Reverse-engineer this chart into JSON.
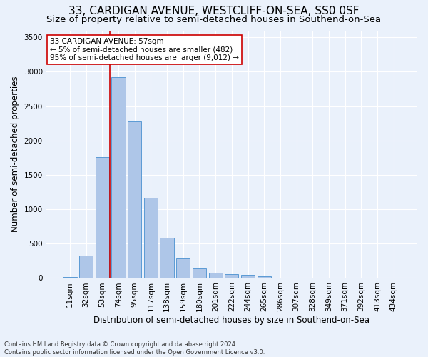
{
  "title_line1": "33, CARDIGAN AVENUE, WESTCLIFF-ON-SEA, SS0 0SF",
  "title_line2": "Size of property relative to semi-detached houses in Southend-on-Sea",
  "xlabel": "Distribution of semi-detached houses by size in Southend-on-Sea",
  "ylabel": "Number of semi-detached properties",
  "footnote": "Contains HM Land Registry data © Crown copyright and database right 2024.\nContains public sector information licensed under the Open Government Licence v3.0.",
  "categories": [
    "11sqm",
    "32sqm",
    "53sqm",
    "74sqm",
    "95sqm",
    "117sqm",
    "138sqm",
    "159sqm",
    "180sqm",
    "201sqm",
    "222sqm",
    "244sqm",
    "265sqm",
    "286sqm",
    "307sqm",
    "328sqm",
    "349sqm",
    "371sqm",
    "392sqm",
    "413sqm",
    "434sqm"
  ],
  "values": [
    20,
    330,
    1760,
    2920,
    2280,
    1170,
    590,
    290,
    135,
    75,
    55,
    45,
    25,
    0,
    0,
    0,
    0,
    0,
    0,
    0,
    0
  ],
  "bar_color": "#aec6e8",
  "bar_edge_color": "#5b9bd5",
  "vline_color": "#cc0000",
  "vline_x_index": 2.45,
  "annotation_text": "33 CARDIGAN AVENUE: 57sqm\n← 5% of semi-detached houses are smaller (482)\n95% of semi-detached houses are larger (9,012) →",
  "annotation_box_color": "#ffffff",
  "annotation_box_edge": "#cc0000",
  "ylim": [
    0,
    3600
  ],
  "yticks": [
    0,
    500,
    1000,
    1500,
    2000,
    2500,
    3000,
    3500
  ],
  "background_color": "#eaf1fb",
  "grid_color": "#ffffff",
  "title_fontsize": 11,
  "subtitle_fontsize": 9.5,
  "axis_label_fontsize": 8.5,
  "tick_fontsize": 7.5,
  "annotation_fontsize": 7.5,
  "footnote_fontsize": 6
}
